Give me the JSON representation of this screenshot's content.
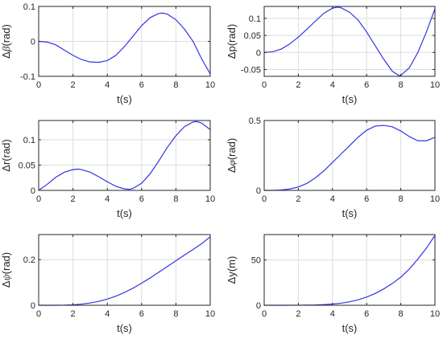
{
  "colors": {
    "line": "#3333e6",
    "axis": "#262626",
    "grid": "#dcdcdc"
  },
  "chart_data": [
    {
      "type": "line",
      "xlabel": "t(s)",
      "ylabel": {
        "prefix": "Δ",
        "symbol": "β",
        "suffix": "(rad)"
      },
      "xlim": [
        0,
        10
      ],
      "ylim": [
        -0.1,
        0.1
      ],
      "xticks": [
        0,
        2,
        4,
        6,
        8,
        10
      ],
      "yticks": [
        -0.1,
        0,
        0.1
      ],
      "grid": true,
      "series": [
        {
          "x": [
            0,
            0.5,
            1,
            1.5,
            2,
            2.5,
            3,
            3.5,
            4,
            4.5,
            5,
            5.5,
            6,
            6.5,
            7,
            7.2,
            7.5,
            8,
            8.5,
            9,
            9.5,
            10
          ],
          "y": [
            0,
            -0.002,
            -0.01,
            -0.025,
            -0.04,
            -0.052,
            -0.059,
            -0.06,
            -0.055,
            -0.04,
            -0.015,
            0.015,
            0.045,
            0.068,
            0.08,
            0.081,
            0.078,
            0.062,
            0.035,
            0.0,
            -0.05,
            -0.093
          ]
        }
      ]
    },
    {
      "type": "line",
      "xlabel": "t(s)",
      "ylabel": {
        "prefix": "Δ",
        "symbol": "",
        "suffix": "p(rad)"
      },
      "xlim": [
        0,
        10
      ],
      "ylim": [
        -0.07,
        0.135
      ],
      "xticks": [
        0,
        2,
        4,
        6,
        8,
        10
      ],
      "yticks": [
        -0.05,
        0,
        0.05,
        0.1
      ],
      "grid": true,
      "series": [
        {
          "x": [
            0,
            0.5,
            1,
            1.5,
            2,
            2.5,
            3,
            3.5,
            4,
            4.3,
            4.5,
            5,
            5.5,
            6,
            6.5,
            7,
            7.5,
            7.9,
            8,
            8.5,
            9,
            9.5,
            10
          ],
          "y": [
            0,
            0.002,
            0.01,
            0.025,
            0.045,
            0.068,
            0.092,
            0.115,
            0.13,
            0.133,
            0.131,
            0.118,
            0.095,
            0.06,
            0.02,
            -0.02,
            -0.055,
            -0.068,
            -0.067,
            -0.045,
            0.0,
            0.06,
            0.128
          ]
        }
      ]
    },
    {
      "type": "line",
      "xlabel": "t(s)",
      "ylabel": {
        "prefix": "Δ",
        "symbol": "",
        "suffix": "r(rad)"
      },
      "xlim": [
        0,
        10
      ],
      "ylim": [
        0,
        0.138
      ],
      "xticks": [
        0,
        2,
        4,
        6,
        8,
        10
      ],
      "yticks": [
        0,
        0.05,
        0.1
      ],
      "grid": true,
      "series": [
        {
          "x": [
            0,
            0.5,
            1,
            1.5,
            2,
            2.3,
            2.5,
            3,
            3.5,
            4,
            4.5,
            5,
            5.3,
            5.5,
            6,
            6.5,
            7,
            7.5,
            8,
            8.5,
            9,
            9.2,
            9.5,
            10
          ],
          "y": [
            0,
            0.012,
            0.026,
            0.036,
            0.041,
            0.042,
            0.041,
            0.036,
            0.027,
            0.017,
            0.008,
            0.003,
            0.002,
            0.004,
            0.014,
            0.033,
            0.058,
            0.085,
            0.108,
            0.126,
            0.135,
            0.136,
            0.133,
            0.12
          ]
        }
      ]
    },
    {
      "type": "line",
      "xlabel": "t(s)",
      "ylabel": {
        "prefix": "Δ",
        "symbol": "φ",
        "suffix": "(rad)"
      },
      "xlim": [
        0,
        10
      ],
      "ylim": [
        0,
        0.5
      ],
      "xticks": [
        0,
        2,
        4,
        6,
        8,
        10
      ],
      "yticks": [
        0,
        0.5
      ],
      "grid": true,
      "series": [
        {
          "x": [
            0,
            0.5,
            1,
            1.5,
            2,
            2.5,
            3,
            3.5,
            4,
            4.5,
            5,
            5.5,
            6,
            6.5,
            7,
            7.5,
            8,
            8.5,
            9,
            9.5,
            10
          ],
          "y": [
            0,
            0.0,
            0.003,
            0.01,
            0.025,
            0.05,
            0.09,
            0.14,
            0.2,
            0.26,
            0.32,
            0.38,
            0.43,
            0.46,
            0.465,
            0.455,
            0.425,
            0.385,
            0.355,
            0.355,
            0.38
          ]
        }
      ]
    },
    {
      "type": "line",
      "xlabel": "t(s)",
      "ylabel": {
        "prefix": "Δ",
        "symbol": "ψ",
        "suffix": "(rad)"
      },
      "xlim": [
        0,
        10
      ],
      "ylim": [
        0,
        0.31
      ],
      "xticks": [
        0,
        2,
        4,
        6,
        8,
        10
      ],
      "yticks": [
        0,
        0.2
      ],
      "grid": true,
      "series": [
        {
          "x": [
            0,
            0.5,
            1,
            1.5,
            2,
            2.5,
            3,
            3.5,
            4,
            4.5,
            5,
            5.5,
            6,
            6.5,
            7,
            7.5,
            8,
            8.5,
            9,
            9.5,
            10
          ],
          "y": [
            0,
            0,
            0,
            0.0005,
            0.002,
            0.005,
            0.01,
            0.017,
            0.027,
            0.04,
            0.056,
            0.075,
            0.097,
            0.12,
            0.145,
            0.17,
            0.195,
            0.22,
            0.245,
            0.27,
            0.3
          ]
        }
      ]
    },
    {
      "type": "line",
      "xlabel": "t(s)",
      "ylabel": {
        "prefix": "Δ",
        "symbol": "",
        "suffix": "y(m)"
      },
      "xlim": [
        0,
        10
      ],
      "ylim": [
        0,
        78
      ],
      "xticks": [
        0,
        2,
        4,
        6,
        8,
        10
      ],
      "yticks": [
        0,
        50
      ],
      "grid": true,
      "series": [
        {
          "x": [
            0,
            1,
            2,
            3,
            3.5,
            4,
            4.5,
            5,
            5.5,
            6,
            6.5,
            7,
            7.5,
            8,
            8.5,
            9,
            9.5,
            10
          ],
          "y": [
            0,
            0,
            0.05,
            0.3,
            0.7,
            1.3,
            2.3,
            3.8,
            6,
            9,
            13,
            18,
            24,
            31,
            40,
            51,
            63,
            77
          ]
        }
      ]
    }
  ]
}
